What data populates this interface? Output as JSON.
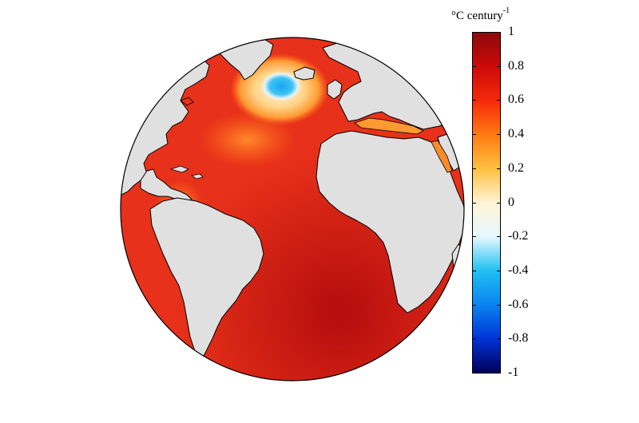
{
  "colorbar": {
    "title_main": "°C century",
    "title_exponent": "-1",
    "ticks": [
      "1",
      "0.8",
      "0.6",
      "0.4",
      "0.2",
      "0",
      "-0.2",
      "-0.4",
      "-0.6",
      "-0.8",
      "-1"
    ],
    "range": [
      -1,
      1
    ],
    "colormap": [
      "#00005a",
      "#0033d6",
      "#0a84f0",
      "#1fc0f0",
      "#e6f8ff",
      "#fff4d6",
      "#ffc040",
      "#ff7a12",
      "#f52a0a",
      "#cc0a0a",
      "#8c0a0a"
    ]
  },
  "map": {
    "projection": "orthographic",
    "land_color": "#e0e0e0",
    "ocean_base_color": "#e8311a",
    "coastline_color": "#000000"
  }
}
